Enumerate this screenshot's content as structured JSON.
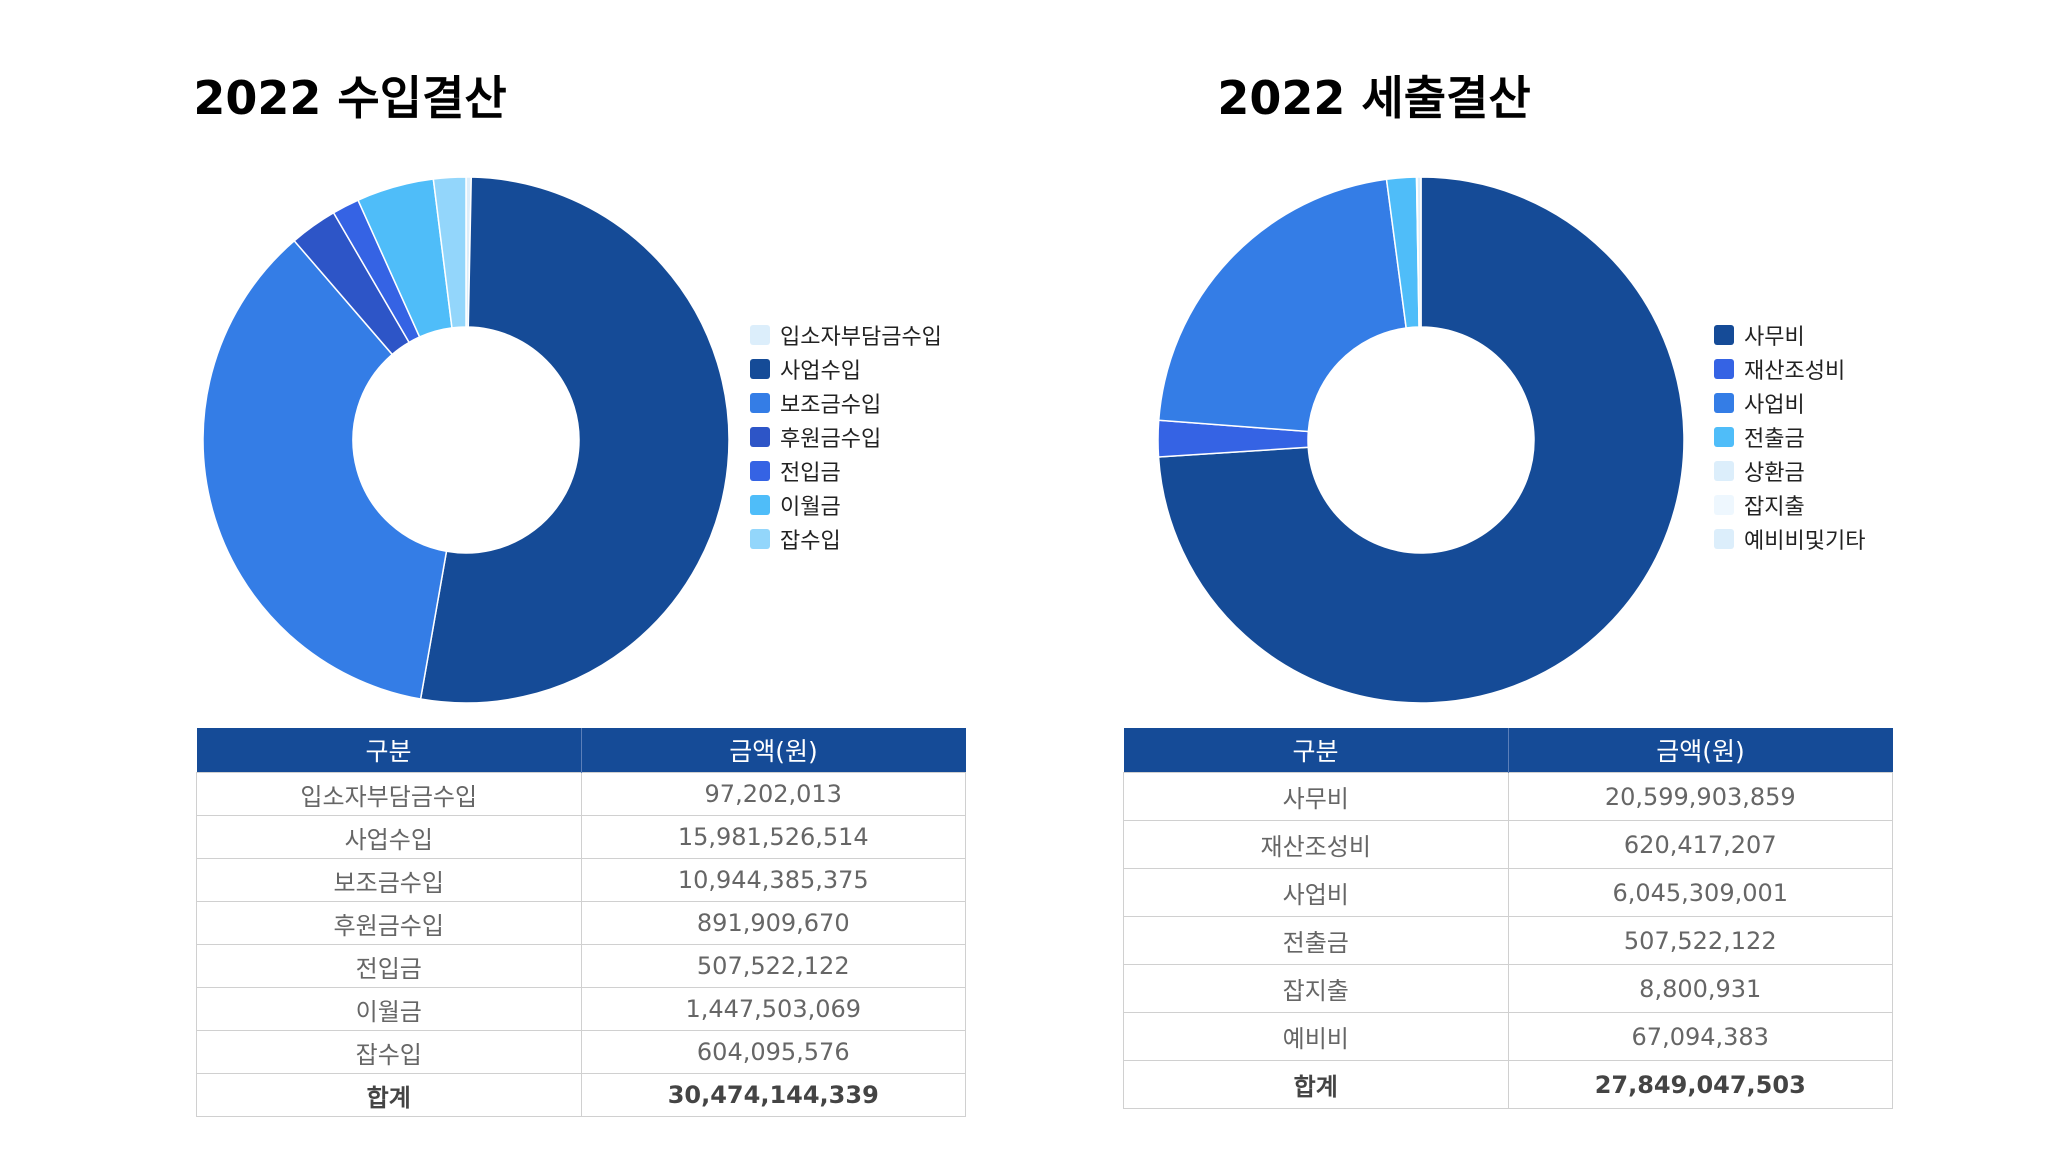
{
  "chart_data": [
    {
      "type": "pie",
      "title": "2022 수입결산",
      "categories": [
        "입소자부담금수입",
        "사업수입",
        "보조금수입",
        "후원금수입",
        "전입금",
        "이월금",
        "잡수입"
      ],
      "values": [
        97202013,
        15981526514,
        10944385375,
        891909670,
        507522122,
        1447503069,
        604095576
      ],
      "colors": [
        "#dceefb",
        "#154b97",
        "#347de6",
        "#2d55c7",
        "#3563e4",
        "#4fbdf9",
        "#93d6fb"
      ],
      "legend_position": "right",
      "table": {
        "headers": [
          "구분",
          "금액(원)"
        ],
        "rows": [
          [
            "입소자부담금수입",
            "97,202,013"
          ],
          [
            "사업수입",
            "15,981,526,514"
          ],
          [
            "보조금수입",
            "10,944,385,375"
          ],
          [
            "후원금수입",
            "891,909,670"
          ],
          [
            "전입금",
            "507,522,122"
          ],
          [
            "이월금",
            "1,447,503,069"
          ],
          [
            "잡수입",
            "604,095,576"
          ]
        ],
        "total": [
          "합계",
          "30,474,144,339"
        ]
      }
    },
    {
      "type": "pie",
      "title": "2022 세출결산",
      "categories": [
        "사무비",
        "재산조성비",
        "사업비",
        "전출금",
        "상환금",
        "잡지출",
        "예비비및기타"
      ],
      "values": [
        20599903859,
        620417207,
        6045309001,
        507522122,
        0,
        8800931,
        67094383
      ],
      "colors": [
        "#154b97",
        "#3563e4",
        "#347de6",
        "#4fbdf9",
        "#dceefb",
        "#eef7fe",
        "#dceefb"
      ],
      "legend_position": "right",
      "table": {
        "headers": [
          "구분",
          "금액(원)"
        ],
        "rows": [
          [
            "사무비",
            "20,599,903,859"
          ],
          [
            "재산조성비",
            "620,417,207"
          ],
          [
            "사업비",
            "6,045,309,001"
          ],
          [
            "전출금",
            "507,522,122"
          ],
          [
            "잡지출",
            "8,800,931"
          ],
          [
            "예비비",
            "67,094,383"
          ]
        ],
        "total": [
          "합계",
          "27,849,047,503"
        ]
      }
    }
  ]
}
